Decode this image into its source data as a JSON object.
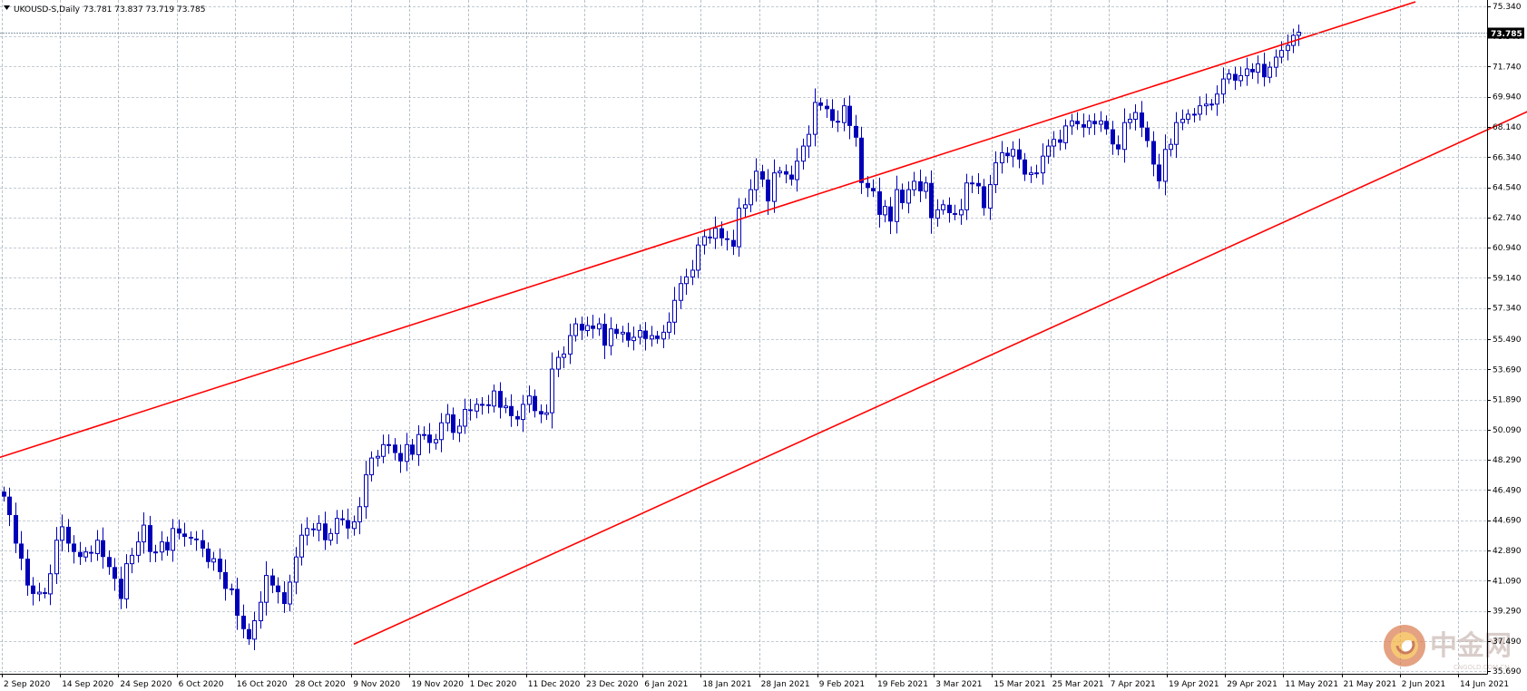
{
  "chart_data": {
    "type": "candlestick",
    "title": "UKOUSD-S,Daily",
    "ohlc_label": "73.781 73.837 73.719 73.785",
    "current_price": 73.785,
    "current_price_label": "73.785",
    "ylim": [
      35.7,
      75.6
    ],
    "y_ticks": [
      "75.340",
      "73.540",
      "71.740",
      "69.940",
      "68.140",
      "66.340",
      "64.540",
      "62.740",
      "60.940",
      "59.140",
      "57.340",
      "55.490",
      "53.690",
      "51.890",
      "50.090",
      "48.290",
      "46.490",
      "44.690",
      "42.890",
      "41.090",
      "39.290",
      "37.490",
      "35.690"
    ],
    "x_ticks": [
      "2 Sep 2020",
      "14 Sep 2020",
      "24 Sep 2020",
      "6 Oct 2020",
      "16 Oct 2020",
      "28 Oct 2020",
      "9 Nov 2020",
      "19 Nov 2020",
      "1 Dec 2020",
      "11 Dec 2020",
      "23 Dec 2020",
      "6 Jan 2021",
      "18 Jan 2021",
      "28 Jan 2021",
      "9 Feb 2021",
      "19 Feb 2021",
      "3 Mar 2021",
      "15 Mar 2021",
      "25 Mar 2021",
      "7 Apr 2021",
      "19 Apr 2021",
      "29 Apr 2021",
      "11 May 2021",
      "21 May 2021",
      "2 Jun 2021",
      "14 Jun 2021"
    ],
    "grid": true,
    "colors": {
      "candle": "#0000b8",
      "trendline": "#ff0000",
      "grid": "#8a9aa8",
      "price_tag": "#000000"
    },
    "trend_channel": {
      "upper": {
        "from": {
          "bar": -1,
          "price": 48.4
        },
        "to": {
          "bar": 242,
          "price": 75.6
        }
      },
      "lower": {
        "from": {
          "bar": 60,
          "price": 37.3
        },
        "to": {
          "bar": 290,
          "price": 73.6
        }
      }
    },
    "closes": [
      46.1,
      45.0,
      43.3,
      42.4,
      40.8,
      40.3,
      40.4,
      40.3,
      41.5,
      43.5,
      44.3,
      43.3,
      42.8,
      42.5,
      42.8,
      42.7,
      43.5,
      42.5,
      41.9,
      41.2,
      40.0,
      42.1,
      42.6,
      43.4,
      44.4,
      42.8,
      42.8,
      43.4,
      42.9,
      44.2,
      43.9,
      43.7,
      43.6,
      43.5,
      43.0,
      42.2,
      42.4,
      41.6,
      40.6,
      40.6,
      39.0,
      38.2,
      37.6,
      38.7,
      39.8,
      41.4,
      40.8,
      40.4,
      39.7,
      41.0,
      42.5,
      43.8,
      44.2,
      44.1,
      44.5,
      43.5,
      43.9,
      44.8,
      44.7,
      44.2,
      44.6,
      45.5,
      47.4,
      48.4,
      48.5,
      49.2,
      49.2,
      48.7,
      48.2,
      49.2,
      48.6,
      49.8,
      49.8,
      49.3,
      49.5,
      50.5,
      51.0,
      49.9,
      50.3,
      51.3,
      51.2,
      51.6,
      51.6,
      51.5,
      52.4,
      51.4,
      51.5,
      50.9,
      50.7,
      51.6,
      52.1,
      51.2,
      51.0,
      51.1,
      53.7,
      54.4,
      54.6,
      55.7,
      56.4,
      56.0,
      56.3,
      56.1,
      56.4,
      55.1,
      56.1,
      55.8,
      55.9,
      55.4,
      55.6,
      56.0,
      55.5,
      55.7,
      55.5,
      55.9,
      56.5,
      57.8,
      58.8,
      59.2,
      59.6,
      61.1,
      61.6,
      61.5,
      62.1,
      61.5,
      61.4,
      61.0,
      63.3,
      63.5,
      64.4,
      65.5,
      65.0,
      63.7,
      65.4,
      65.5,
      65.3,
      65.0,
      66.1,
      67.0,
      67.7,
      69.6,
      69.4,
      69.2,
      68.5,
      68.4,
      69.4,
      68.2,
      67.5,
      64.8,
      64.5,
      64.3,
      62.9,
      63.4,
      62.5,
      64.4,
      63.6,
      64.4,
      64.9,
      64.3,
      64.8,
      62.7,
      63.2,
      63.5,
      63.0,
      62.9,
      63.2,
      64.8,
      64.8,
      64.6,
      63.3,
      64.7,
      66.0,
      66.6,
      66.4,
      66.8,
      66.2,
      65.3,
      65.4,
      65.4,
      66.4,
      67.0,
      67.4,
      67.2,
      68.2,
      68.5,
      68.3,
      68.1,
      68.5,
      68.3,
      68.5,
      68.0,
      67.1,
      66.8,
      68.4,
      68.6,
      69.0,
      68.1,
      67.3,
      65.9,
      64.9,
      66.8,
      67.1,
      68.4,
      68.6,
      68.9,
      68.9,
      69.4,
      69.5,
      69.5,
      70.1,
      71.0,
      71.3,
      70.9,
      71.2,
      71.6,
      71.4,
      71.9,
      71.1,
      71.7,
      72.3,
      72.7,
      73.0,
      73.6,
      73.785
    ],
    "watermark": {
      "logo_text": "中金网",
      "sub_text": "CNGOLD.COM.CN"
    }
  }
}
